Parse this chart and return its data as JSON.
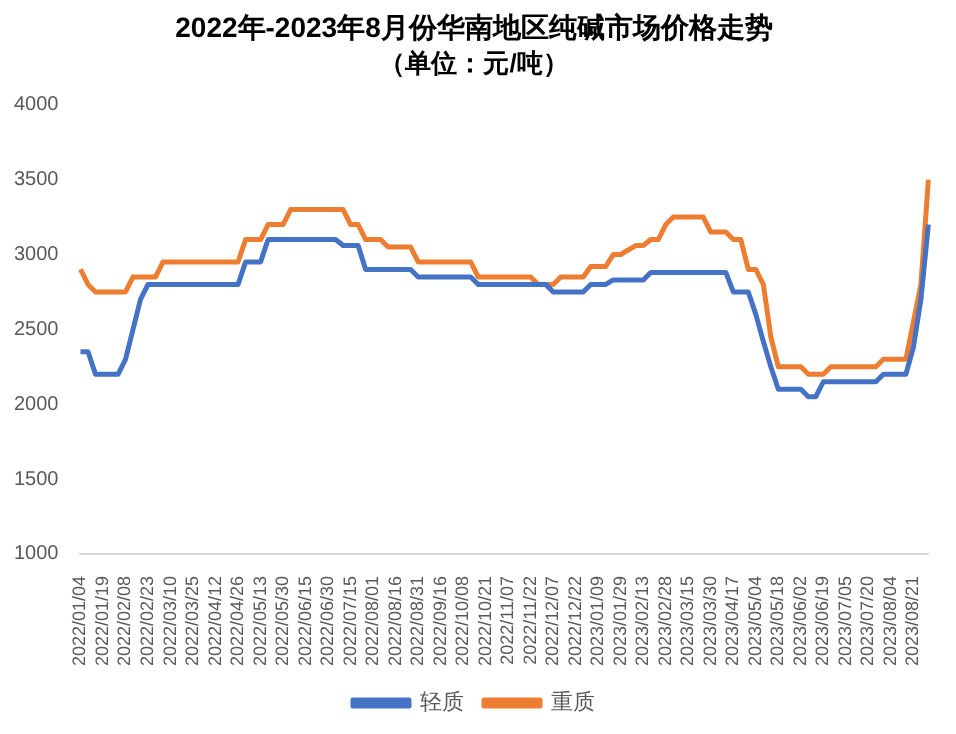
{
  "chart_data": {
    "type": "line",
    "title": "2022年-2023年8月份华南地区纯碱市场价格走势",
    "subtitle": "（单位：元/吨）",
    "categories": [
      "2022/01/04",
      null,
      null,
      "2022/01/19",
      null,
      null,
      "2022/02/08",
      null,
      null,
      "2022/02/23",
      null,
      null,
      "2022/03/10",
      null,
      null,
      "2022/03/25",
      null,
      null,
      "2022/04/12",
      null,
      null,
      "2022/04/26",
      null,
      null,
      "2022/05/13",
      null,
      null,
      "2022/05/30",
      null,
      null,
      "2022/06/15",
      null,
      null,
      "2022/06/30",
      null,
      null,
      "2022/07/15",
      null,
      null,
      "2022/08/01",
      null,
      null,
      "2022/08/16",
      null,
      null,
      "2022/08/31",
      null,
      null,
      "2022/09/16",
      null,
      null,
      "2022/10/08",
      null,
      null,
      "2022/10/21",
      null,
      null,
      "2022/11/07",
      null,
      null,
      "2022/11/22",
      null,
      null,
      "2022/12/07",
      null,
      null,
      "2022/12/22",
      null,
      null,
      "2023/01/09",
      null,
      null,
      "2023/01/29",
      null,
      null,
      "2023/02/13",
      null,
      null,
      "2023/02/28",
      null,
      null,
      "2023/03/15",
      null,
      null,
      "2023/03/30",
      null,
      null,
      "2023/04/17",
      null,
      null,
      "2023/05/04",
      null,
      null,
      "2023/05/18",
      null,
      null,
      "2023/06/02",
      null,
      null,
      "2023/06/19",
      null,
      null,
      "2023/07/05",
      null,
      null,
      "2023/07/20",
      null,
      null,
      "2023/08/04",
      null,
      null,
      "2023/08/21",
      null,
      null
    ],
    "series": [
      {
        "name": "轻质",
        "color": "#4472c4",
        "values": [
          2350,
          2350,
          2200,
          2200,
          2200,
          2200,
          2300,
          2500,
          2700,
          2800,
          2800,
          2800,
          2800,
          2800,
          2800,
          2800,
          2800,
          2800,
          2800,
          2800,
          2800,
          2800,
          2950,
          2950,
          2950,
          3100,
          3100,
          3100,
          3100,
          3100,
          3100,
          3100,
          3100,
          3100,
          3100,
          3060,
          3060,
          3060,
          2900,
          2900,
          2900,
          2900,
          2900,
          2900,
          2900,
          2850,
          2850,
          2850,
          2850,
          2850,
          2850,
          2850,
          2850,
          2800,
          2800,
          2800,
          2800,
          2800,
          2800,
          2800,
          2800,
          2800,
          2800,
          2750,
          2750,
          2750,
          2750,
          2750,
          2800,
          2800,
          2800,
          2830,
          2830,
          2830,
          2830,
          2830,
          2880,
          2880,
          2880,
          2880,
          2880,
          2880,
          2880,
          2880,
          2880,
          2880,
          2880,
          2750,
          2750,
          2750,
          2600,
          2420,
          2250,
          2100,
          2100,
          2100,
          2100,
          2050,
          2050,
          2150,
          2150,
          2150,
          2150,
          2150,
          2150,
          2150,
          2150,
          2200,
          2200,
          2200,
          2200,
          2380,
          2700,
          3200
        ]
      },
      {
        "name": "重质",
        "color": "#ed7d31",
        "values": [
          2900,
          2800,
          2750,
          2750,
          2750,
          2750,
          2750,
          2850,
          2850,
          2850,
          2850,
          2950,
          2950,
          2950,
          2950,
          2950,
          2950,
          2950,
          2950,
          2950,
          2950,
          2950,
          3100,
          3100,
          3100,
          3200,
          3200,
          3200,
          3300,
          3300,
          3300,
          3300,
          3300,
          3300,
          3300,
          3300,
          3200,
          3200,
          3100,
          3100,
          3100,
          3050,
          3050,
          3050,
          3050,
          2950,
          2950,
          2950,
          2950,
          2950,
          2950,
          2950,
          2950,
          2850,
          2850,
          2850,
          2850,
          2850,
          2850,
          2850,
          2850,
          2800,
          2800,
          2800,
          2850,
          2850,
          2850,
          2850,
          2920,
          2920,
          2920,
          3000,
          3000,
          3030,
          3060,
          3060,
          3100,
          3100,
          3200,
          3250,
          3250,
          3250,
          3250,
          3250,
          3150,
          3150,
          3150,
          3100,
          3100,
          2900,
          2900,
          2800,
          2450,
          2250,
          2250,
          2250,
          2250,
          2200,
          2200,
          2200,
          2250,
          2250,
          2250,
          2250,
          2250,
          2250,
          2250,
          2300,
          2300,
          2300,
          2300,
          2550,
          2800,
          3500
        ]
      }
    ],
    "ylim": [
      1000,
      4000
    ],
    "yticks": [
      1000,
      1500,
      2000,
      2500,
      3000,
      3500,
      4000
    ],
    "grid": false,
    "legend": "bottom"
  }
}
